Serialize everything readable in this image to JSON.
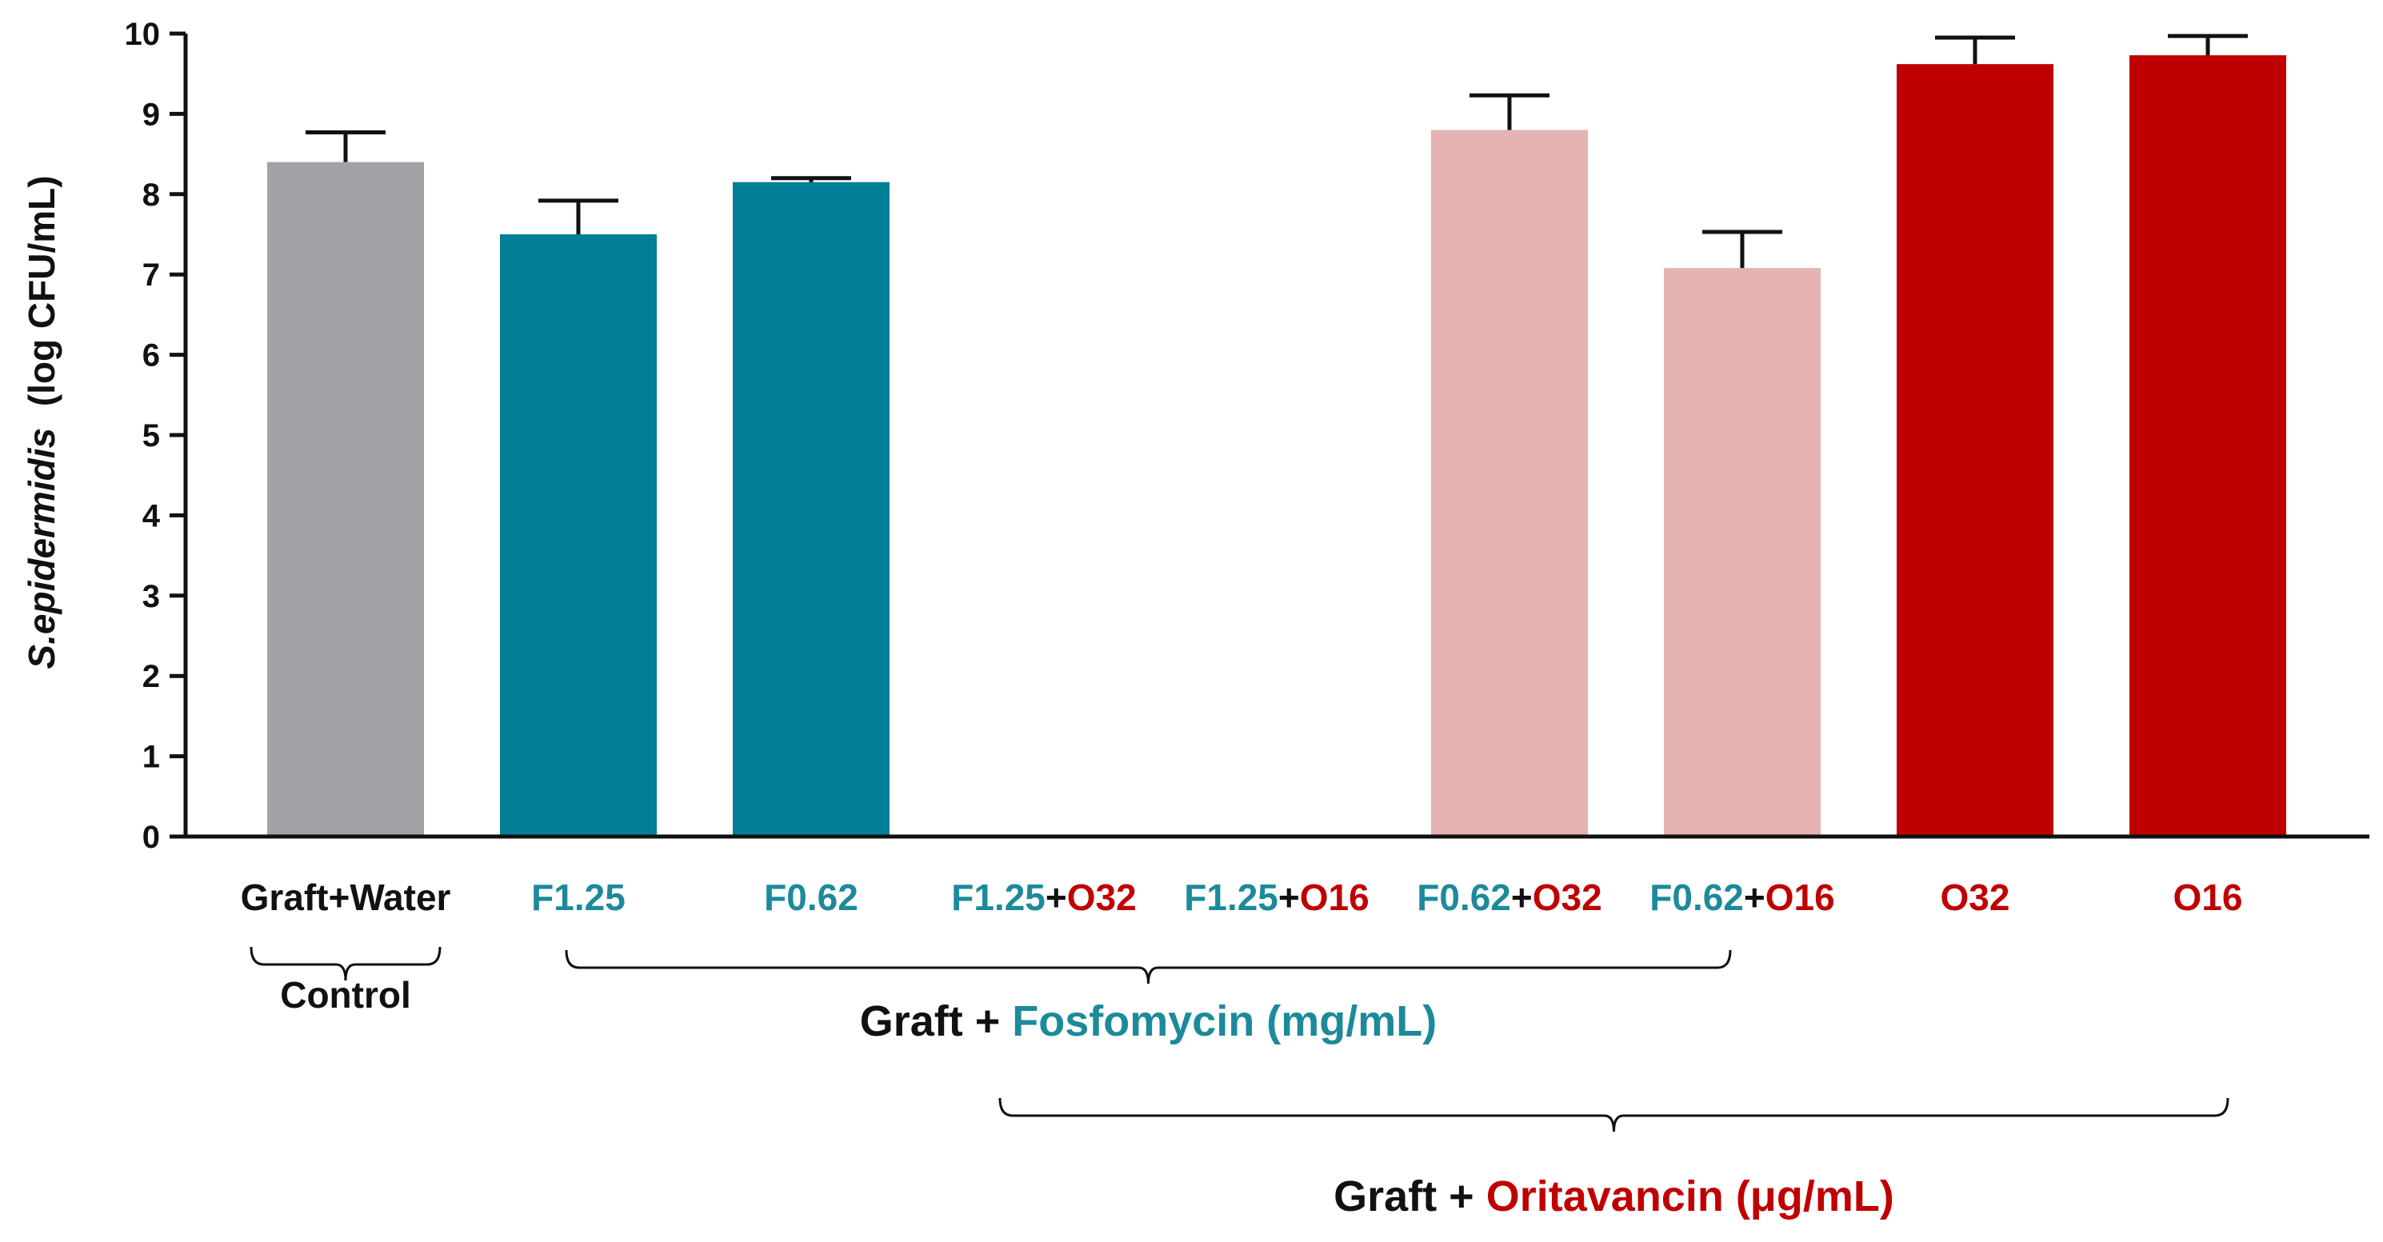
{
  "chart_data": {
    "type": "bar",
    "ylabel": {
      "species": "S.epidermidis",
      "unit": "(log CFU/mL)"
    },
    "ylim": [
      0,
      10
    ],
    "yticks": [
      "0",
      "1",
      "2",
      "3",
      "4",
      "5",
      "6",
      "7",
      "8",
      "9",
      "10"
    ],
    "ytick_values": [
      0,
      1,
      2,
      3,
      4,
      5,
      6,
      7,
      8,
      9,
      10
    ],
    "grid": false,
    "colors": {
      "control": "#a3a1a6",
      "fosfomycin": "#007f96",
      "combination": "#e4b3b2",
      "oritavancin": "#bf0000",
      "teal_text": "#1c8a9a",
      "red_text": "#c00000",
      "black_text": "#111111"
    },
    "categories": [
      {
        "label_parts": [
          {
            "text": "Graft+Water",
            "color": "black"
          }
        ],
        "value": 8.4,
        "error": 0.37,
        "color_key": "control"
      },
      {
        "label_parts": [
          {
            "text": "F1.25",
            "color": "teal"
          }
        ],
        "value": 7.5,
        "error": 0.42,
        "color_key": "fosfomycin"
      },
      {
        "label_parts": [
          {
            "text": "F0.62",
            "color": "teal"
          }
        ],
        "value": 8.15,
        "error": 0.05,
        "color_key": "fosfomycin"
      },
      {
        "label_parts": [
          {
            "text": "F1.25",
            "color": "teal"
          },
          {
            "text": "+",
            "color": "black"
          },
          {
            "text": "O32",
            "color": "red"
          }
        ],
        "value": 0,
        "error": 0,
        "color_key": "combination"
      },
      {
        "label_parts": [
          {
            "text": "F1.25",
            "color": "teal"
          },
          {
            "text": "+",
            "color": "black"
          },
          {
            "text": "O16",
            "color": "red"
          }
        ],
        "value": 0,
        "error": 0,
        "color_key": "combination"
      },
      {
        "label_parts": [
          {
            "text": "F0.62",
            "color": "teal"
          },
          {
            "text": "+",
            "color": "black"
          },
          {
            "text": "O32",
            "color": "red"
          }
        ],
        "value": 8.8,
        "error": 0.43,
        "color_key": "combination"
      },
      {
        "label_parts": [
          {
            "text": "F0.62",
            "color": "teal"
          },
          {
            "text": "+",
            "color": "black"
          },
          {
            "text": "O16",
            "color": "red"
          }
        ],
        "value": 7.08,
        "error": 0.45,
        "color_key": "combination"
      },
      {
        "label_parts": [
          {
            "text": "O32",
            "color": "red"
          }
        ],
        "value": 9.62,
        "error": 0.33,
        "color_key": "oritavancin"
      },
      {
        "label_parts": [
          {
            "text": "O16",
            "color": "red"
          }
        ],
        "value": 9.73,
        "error": 0.24,
        "color_key": "oritavancin"
      }
    ],
    "groups": [
      {
        "from": 0,
        "to": 0,
        "parts": [
          {
            "text": "Control",
            "color": "black"
          }
        ]
      },
      {
        "from": 1,
        "to": 6,
        "parts": [
          {
            "text": "Graft + ",
            "color": "black"
          },
          {
            "text": "Fosfomycin (mg/mL)",
            "color": "teal"
          }
        ]
      },
      {
        "from": 3,
        "to": 8,
        "parts": [
          {
            "text": "Graft + ",
            "color": "black"
          },
          {
            "text": "Oritavancin (μg/mL)",
            "color": "red"
          }
        ]
      }
    ]
  }
}
